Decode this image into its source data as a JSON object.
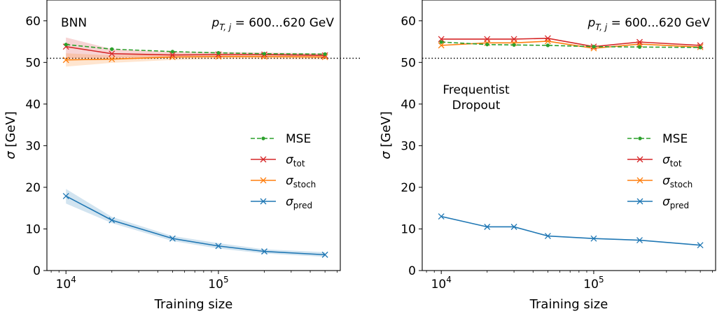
{
  "colors": {
    "mse": "#2ca02c",
    "tot": "#d62728",
    "stoch": "#ff7f0e",
    "pred": "#1f77b4",
    "reference": "#000000"
  },
  "shared": {
    "xlabel": "Training size",
    "ylabel_symbol": "σ",
    "ylabel_unit": " [GeV]",
    "pt_label_main": "p",
    "pt_label_sub": "T, j",
    "pt_label_range": " = 600...620 GeV",
    "xtick_labels": [
      {
        "base": "10",
        "exp": "4"
      },
      {
        "base": "10",
        "exp": "5"
      }
    ],
    "legend": [
      {
        "key": "mse",
        "sym": "MSE",
        "sub": ""
      },
      {
        "key": "tot",
        "sym": "σ",
        "sub": "tot"
      },
      {
        "key": "stoch",
        "sym": "σ",
        "sub": "stoch"
      },
      {
        "key": "pred",
        "sym": "σ",
        "sub": "pred"
      }
    ]
  },
  "chart_data": [
    {
      "type": "line",
      "title": "BNN",
      "xscale": "log",
      "xlim": [
        7500,
        630000
      ],
      "ylim": [
        0,
        65
      ],
      "yticks": [
        0,
        10,
        20,
        30,
        40,
        50,
        60
      ],
      "xticks": [
        10000,
        100000
      ],
      "reference_line": 51,
      "legend_position": "center-right",
      "series": [
        {
          "key": "mse",
          "style": "dashed-dot",
          "x": [
            10000,
            20000,
            50000,
            100000,
            200000,
            500000
          ],
          "y": [
            54.3,
            53.2,
            52.6,
            52.3,
            52.1,
            52.0
          ]
        },
        {
          "key": "tot",
          "style": "x",
          "x": [
            10000,
            20000,
            50000,
            100000,
            200000,
            500000
          ],
          "y": [
            53.8,
            52.1,
            51.8,
            51.9,
            51.9,
            51.7
          ],
          "band": [
            [
              56.0,
              51.0
            ],
            [
              53.2,
              51.1
            ],
            [
              52.5,
              51.2
            ],
            [
              52.5,
              51.4
            ],
            [
              52.4,
              51.4
            ],
            [
              52.2,
              51.2
            ]
          ]
        },
        {
          "key": "stoch",
          "style": "x",
          "x": [
            10000,
            20000,
            50000,
            100000,
            200000,
            500000
          ],
          "y": [
            50.6,
            50.8,
            51.3,
            51.4,
            51.4,
            51.3
          ],
          "band": [
            [
              52.2,
              49.0
            ],
            [
              51.7,
              49.9
            ],
            [
              52.0,
              50.6
            ],
            [
              52.0,
              50.8
            ],
            [
              52.0,
              50.8
            ],
            [
              51.9,
              50.7
            ]
          ]
        },
        {
          "key": "pred",
          "style": "x",
          "x": [
            10000,
            20000,
            50000,
            100000,
            200000,
            500000
          ],
          "y": [
            17.9,
            12.1,
            7.7,
            5.9,
            4.6,
            3.8
          ],
          "band": [
            [
              19.6,
              16.1
            ],
            [
              12.9,
              11.4
            ],
            [
              8.3,
              7.1
            ],
            [
              6.6,
              5.3
            ],
            [
              5.1,
              4.1
            ],
            [
              4.4,
              3.3
            ]
          ]
        }
      ]
    },
    {
      "type": "line",
      "title": "Frequentist Dropout",
      "title_lines": [
        "Frequentist",
        "Dropout"
      ],
      "xscale": "log",
      "xlim": [
        7500,
        630000
      ],
      "ylim": [
        0,
        65
      ],
      "yticks": [
        0,
        10,
        20,
        30,
        40,
        50,
        60
      ],
      "xticks": [
        10000,
        100000
      ],
      "reference_line": 51,
      "legend_position": "center-right",
      "series": [
        {
          "key": "mse",
          "style": "dashed-dot",
          "x": [
            10000,
            20000,
            30000,
            50000,
            100000,
            200000,
            500000
          ],
          "y": [
            54.9,
            54.3,
            54.2,
            54.1,
            53.8,
            53.7,
            53.6
          ]
        },
        {
          "key": "tot",
          "style": "x",
          "x": [
            10000,
            20000,
            30000,
            50000,
            100000,
            200000,
            500000
          ],
          "y": [
            55.6,
            55.6,
            55.6,
            55.8,
            53.8,
            54.9,
            54.1
          ]
        },
        {
          "key": "stoch",
          "style": "x",
          "x": [
            10000,
            20000,
            30000,
            50000,
            100000,
            200000,
            500000
          ],
          "y": [
            54.1,
            54.7,
            54.7,
            55.1,
            53.4,
            54.4,
            53.7
          ]
        },
        {
          "key": "pred",
          "style": "x",
          "x": [
            10000,
            20000,
            30000,
            50000,
            100000,
            200000,
            500000
          ],
          "y": [
            13.0,
            10.5,
            10.5,
            8.3,
            7.7,
            7.3,
            6.1
          ]
        }
      ]
    }
  ]
}
